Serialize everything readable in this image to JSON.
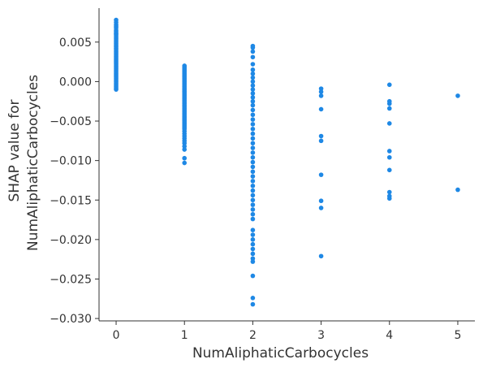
{
  "chart_data": {
    "type": "scatter",
    "xlabel": "NumAliphaticCarbocycles",
    "ylabel_lines": [
      "SHAP value for",
      "NumAliphaticCarbocycles"
    ],
    "xlim": [
      -0.25,
      5.25
    ],
    "ylim": [
      -0.0303,
      0.0093
    ],
    "x_ticks": [
      0,
      1,
      2,
      3,
      4,
      5
    ],
    "y_ticks": [
      0.005,
      0.0,
      -0.005,
      -0.01,
      -0.015,
      -0.02,
      -0.025,
      -0.03
    ],
    "y_tick_labels": [
      "0.005",
      "0.000",
      "−0.005",
      "−0.010",
      "−0.015",
      "−0.020",
      "−0.025",
      "−0.030"
    ],
    "grid": false,
    "point_color": "#1e88e5",
    "series": [
      {
        "x": 0,
        "y": [
          0.0078,
          0.0075,
          0.0072,
          0.007,
          0.0068,
          0.0065,
          0.0063,
          0.0061,
          0.006,
          0.0058,
          0.0056,
          0.0054,
          0.0052,
          0.005,
          0.0048,
          0.0046,
          0.0044,
          0.0042,
          0.004,
          0.0038,
          0.0036,
          0.0034,
          0.0032,
          0.003,
          0.0028,
          0.0026,
          0.0024,
          0.0022,
          0.002,
          0.0018,
          0.0016,
          0.0014,
          0.0012,
          0.001,
          0.0008,
          0.0006,
          0.0004,
          0.0002,
          0.0,
          -0.0002,
          -0.0004,
          -0.0006,
          -0.0008,
          -0.001
        ]
      },
      {
        "x": 1,
        "y": [
          0.002,
          0.0018,
          0.0016,
          0.0014,
          0.0012,
          0.001,
          0.0008,
          0.0006,
          0.0004,
          0.0002,
          0.0,
          -0.0002,
          -0.0004,
          -0.0006,
          -0.0008,
          -0.001,
          -0.0012,
          -0.0014,
          -0.0016,
          -0.0018,
          -0.002,
          -0.0022,
          -0.0024,
          -0.0026,
          -0.0028,
          -0.003,
          -0.0032,
          -0.0034,
          -0.0036,
          -0.0038,
          -0.004,
          -0.0042,
          -0.0044,
          -0.0046,
          -0.0048,
          -0.005,
          -0.0052,
          -0.0054,
          -0.0056,
          -0.0058,
          -0.006,
          -0.0063,
          -0.0066,
          -0.0069,
          -0.0072,
          -0.0075,
          -0.0078,
          -0.0082,
          -0.0086,
          -0.0097,
          -0.0103
        ]
      },
      {
        "x": 2,
        "y": [
          0.0045,
          0.0043,
          0.0038,
          0.0031,
          0.0022,
          0.0015,
          0.001,
          0.0005,
          0.0,
          -0.0005,
          -0.001,
          -0.0015,
          -0.002,
          -0.0025,
          -0.003,
          -0.0036,
          -0.0042,
          -0.0048,
          -0.0054,
          -0.006,
          -0.0066,
          -0.0072,
          -0.0078,
          -0.0084,
          -0.009,
          -0.0096,
          -0.0102,
          -0.0108,
          -0.0114,
          -0.012,
          -0.0126,
          -0.0132,
          -0.0138,
          -0.0144,
          -0.015,
          -0.0156,
          -0.0162,
          -0.0168,
          -0.0174,
          -0.0188,
          -0.0194,
          -0.02,
          -0.0206,
          -0.0212,
          -0.0218,
          -0.0224,
          -0.0228,
          -0.0246,
          -0.0274,
          -0.0282
        ]
      },
      {
        "x": 3,
        "y": [
          -0.0009,
          -0.0013,
          -0.0018,
          -0.0035,
          -0.0069,
          -0.0075,
          -0.0118,
          -0.0151,
          -0.016,
          -0.0221
        ]
      },
      {
        "x": 4,
        "y": [
          -0.0004,
          -0.0025,
          -0.0028,
          -0.0034,
          -0.0053,
          -0.0088,
          -0.0096,
          -0.0112,
          -0.014,
          -0.0145,
          -0.0148
        ]
      },
      {
        "x": 5,
        "y": [
          -0.0018,
          -0.0137
        ]
      }
    ]
  }
}
